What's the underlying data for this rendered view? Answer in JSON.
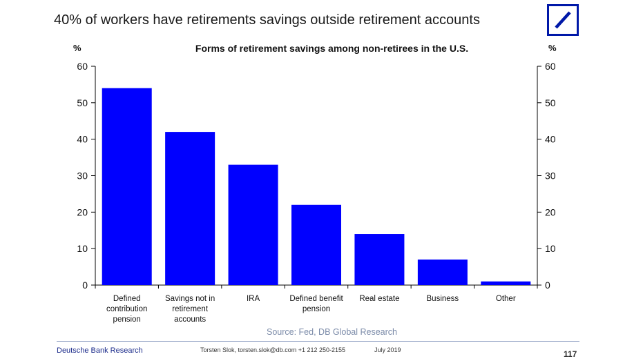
{
  "headline": "40% of workers have retirements savings outside retirement accounts",
  "logo": {
    "icon": "deutsche-bank-slash-square",
    "color": "#0018A8"
  },
  "footer": {
    "brand": "Deutsche Bank Research",
    "contact": "Torsten Slok, torsten.slok@db.com  +1 212 250-2155",
    "date": "July 2019",
    "page": "117"
  },
  "chart_data": {
    "type": "bar",
    "title": "Forms of retirement savings among non-retirees in the U.S.",
    "ylabel_left": "%",
    "ylabel_right": "%",
    "categories": [
      "Defined contribution pension",
      "Savings not in retirement accounts",
      "IRA",
      "Defined benefit pension",
      "Real estate",
      "Business",
      "Other"
    ],
    "category_lines": [
      [
        "Defined",
        "contribution",
        "pension"
      ],
      [
        "Savings not in",
        "retirement",
        "accounts"
      ],
      [
        "IRA"
      ],
      [
        "Defined benefit",
        "pension"
      ],
      [
        "Real estate"
      ],
      [
        "Business"
      ],
      [
        "Other"
      ]
    ],
    "values": [
      54,
      42,
      33,
      22,
      14,
      7,
      1
    ],
    "ylim": [
      0,
      60
    ],
    "yticks": [
      0,
      10,
      20,
      30,
      40,
      50,
      60
    ],
    "bar_color": "#0000FF",
    "grid": false,
    "legend": "none",
    "source": "Source: Fed, DB Global Research"
  }
}
